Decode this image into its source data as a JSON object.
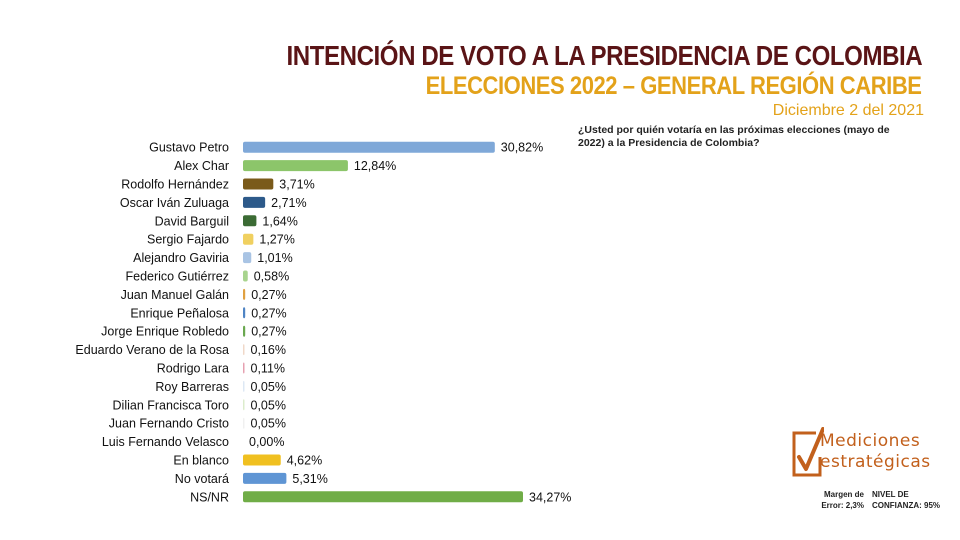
{
  "header": {
    "title": "INTENCIÓN DE VOTO A LA PRESIDENCIA DE COLOMBIA",
    "subtitle": "ELECCIONES 2022 – GENERAL REGIÓN CARIBE",
    "date": "Diciembre 2 del 2021"
  },
  "question": "¿Usted por quién votaría en las próximas elecciones (mayo de 2022) a la Presidencia de Colombia?",
  "logo": {
    "line1": "Mediciones",
    "line2": "estratégicas",
    "icon": "checkmark-box-icon",
    "color": "#c2601c"
  },
  "footer": {
    "margin_label": "Margen de Error: 2,3%",
    "confidence_label": "NIVEL DE CONFIANZA: 95%"
  },
  "chart_data": {
    "type": "bar",
    "orientation": "horizontal",
    "title": "",
    "xlabel": "",
    "ylabel": "",
    "xlim": [
      0,
      34.27
    ],
    "grid": false,
    "categories": [
      "Gustavo Petro",
      "Alex Char",
      "Rodolfo Hernández",
      "Oscar Iván Zuluaga",
      "David Barguil",
      "Sergio Fajardo",
      "Alejandro Gaviria",
      "Federico Gutiérrez",
      "Juan Manuel Galán",
      "Enrique Peñalosa",
      "Jorge Enrique Robledo",
      "Eduardo Verano de la Rosa",
      "Rodrigo Lara",
      "Roy Barreras",
      "Dilian Francisca Toro",
      "Juan Fernando Cristo",
      "Luis Fernando Velasco",
      "En blanco",
      "No votará",
      "NS/NR"
    ],
    "values": [
      30.82,
      12.84,
      3.71,
      2.71,
      1.64,
      1.27,
      1.01,
      0.58,
      0.27,
      0.27,
      0.27,
      0.16,
      0.11,
      0.05,
      0.05,
      0.05,
      0.0,
      4.62,
      5.31,
      34.27
    ],
    "value_labels": [
      "30,82%",
      "12,84%",
      "3,71%",
      "2,71%",
      "1,64%",
      "1,27%",
      "1,01%",
      "0,58%",
      "0,27%",
      "0,27%",
      "0,27%",
      "0,16%",
      "0,11%",
      "0,05%",
      "0,05%",
      "0,05%",
      "0,00%",
      "4,62%",
      "5,31%",
      "34,27%"
    ],
    "colors": [
      "#7fa8d8",
      "#8cc56a",
      "#7a5a1a",
      "#2d5a8a",
      "#3b6b34",
      "#f0d060",
      "#a9c4e4",
      "#a8d48e",
      "#e0a040",
      "#4f84c4",
      "#6aa84f",
      "#f0d8c8",
      "#e6a0b0",
      "#dde8f4",
      "#dceccc",
      "#f0f0f0",
      "#c8d8ec",
      "#f0c020",
      "#5f95d4",
      "#70ad47"
    ]
  }
}
